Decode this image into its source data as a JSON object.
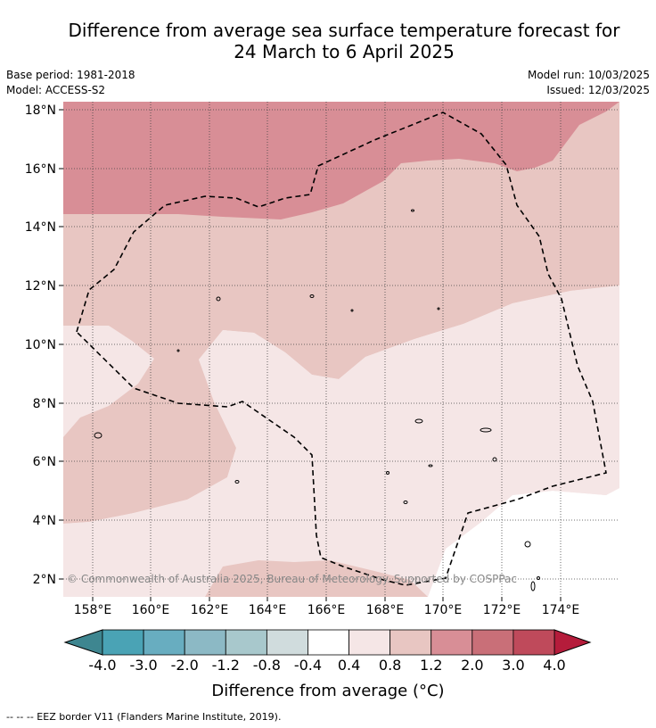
{
  "title_line1": "Difference from average sea surface temperature forecast for",
  "title_line2": "24 March to 6 April 2025",
  "base_period": "Base period: 1981-2018",
  "model": "Model: ACCESS-S2",
  "model_run": "Model run: 10/03/2025",
  "issued": "Issued: 12/03/2025",
  "copyright": "© Commonwealth of Australia 2025, Bureau of Meteorology. Supported by COSPPac",
  "footnote": "--  --  -- EEZ border V11 (Flanders Marine Institute, 2019).",
  "map": {
    "lon_ticks": [
      "158°E",
      "160°E",
      "162°E",
      "164°E",
      "166°E",
      "168°E",
      "170°E",
      "172°E",
      "174°E"
    ],
    "lat_ticks": [
      "18°N",
      "16°N",
      "14°N",
      "12°N",
      "10°N",
      "8°N",
      "6°N",
      "4°N",
      "2°N"
    ]
  },
  "colorbar": {
    "label": "Difference from average (°C)",
    "ticks": [
      "-4.0",
      "-3.0",
      "-2.0",
      "-1.2",
      "-0.8",
      "-0.4",
      "0.4",
      "0.8",
      "1.2",
      "2.0",
      "3.0",
      "4.0"
    ],
    "colors": [
      "#4aa3b5",
      "#68adc0",
      "#8cb9c5",
      "#a8c8cc",
      "#d0dcdd",
      "#ffffff",
      "#f5e6e6",
      "#e8c6c2",
      "#d88e96",
      "#c96f78",
      "#bf4a5b"
    ],
    "under_color": "#3e8690",
    "over_color": "#b51c3b"
  }
}
